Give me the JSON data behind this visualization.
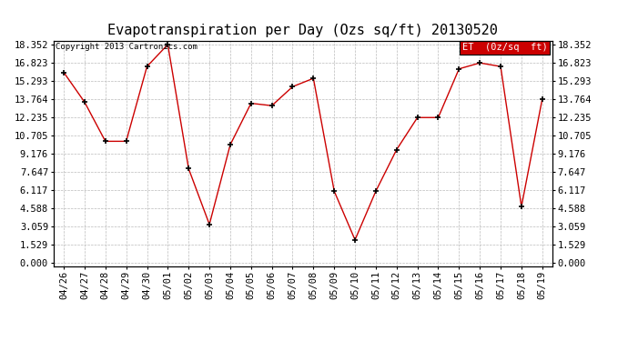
{
  "title": "Evapotranspiration per Day (Ozs sq/ft) 20130520",
  "x_labels": [
    "04/26",
    "04/27",
    "04/28",
    "04/29",
    "04/30",
    "05/01",
    "05/02",
    "05/03",
    "05/04",
    "05/05",
    "05/06",
    "05/07",
    "05/08",
    "05/09",
    "05/10",
    "05/11",
    "05/12",
    "05/13",
    "05/14",
    "05/15",
    "05/16",
    "05/17",
    "05/18",
    "05/19"
  ],
  "y_values": [
    16.0,
    13.5,
    10.2,
    10.2,
    16.5,
    18.352,
    7.9,
    3.2,
    9.9,
    13.4,
    13.2,
    14.8,
    15.5,
    6.0,
    1.9,
    6.0,
    9.5,
    12.2,
    12.2,
    16.3,
    16.8,
    16.5,
    4.7,
    13.764
  ],
  "y_ticks": [
    0.0,
    1.529,
    3.059,
    4.588,
    6.117,
    7.647,
    9.176,
    10.705,
    12.235,
    13.764,
    15.293,
    16.823,
    18.352
  ],
  "line_color": "#cc0000",
  "marker_color": "#000000",
  "grid_color": "#bbbbbb",
  "background_color": "#ffffff",
  "legend_label": "ET  (0z/sq  ft)",
  "legend_bg": "#cc0000",
  "legend_text_color": "#ffffff",
  "copyright_text": "Copyright 2013 Cartronics.com",
  "title_fontsize": 11,
  "tick_fontsize": 7.5,
  "copyright_fontsize": 6.5
}
